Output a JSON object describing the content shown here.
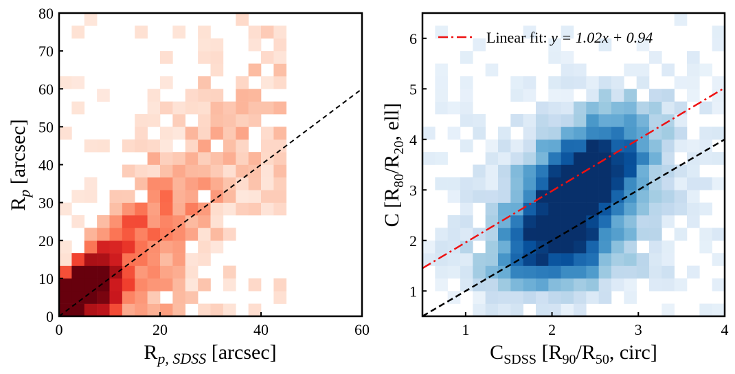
{
  "chart_data": [
    {
      "type": "heatmap",
      "panel": "left",
      "colormap": "Reds",
      "xlabel": "R_{p, SDSS} [arcsec]",
      "ylabel": "R_p [arcsec]",
      "xlim": [
        0,
        60
      ],
      "ylim": [
        0,
        80
      ],
      "x_ticks": [
        "0",
        "20",
        "40",
        "60"
      ],
      "y_ticks": [
        "0",
        "10",
        "20",
        "30",
        "40",
        "50",
        "60",
        "70",
        "80"
      ],
      "reference_line": {
        "style": "dashed",
        "color": "#000000",
        "from": [
          0,
          0
        ],
        "to": [
          60,
          60
        ]
      },
      "bin_counts_note": "intensity 0-1 (darker = more counts)",
      "bins_x": 24,
      "bins_y": 24,
      "grid": "off"
    },
    {
      "type": "heatmap",
      "panel": "right",
      "colormap": "Blues",
      "xlabel": "C_{SDSS} [R_{90}/R_{50}, circ]",
      "ylabel": "C [R_{80}/R_{20}, ell]",
      "xlim": [
        0.5,
        4.0
      ],
      "ylim": [
        0.5,
        6.5
      ],
      "x_ticks": [
        "1",
        "2",
        "3",
        "4"
      ],
      "y_ticks": [
        "1",
        "2",
        "3",
        "4",
        "5",
        "6"
      ],
      "reference_line": {
        "style": "dashed",
        "color": "#000000",
        "from": [
          0.5,
          0.5
        ],
        "to": [
          4.0,
          4.0
        ]
      },
      "fit_line": {
        "style": "dashdot",
        "color": "#ee1111",
        "slope": 1.02,
        "intercept": 0.94
      },
      "legend": {
        "position": "top-left",
        "entries": [
          {
            "label": "Linear fit: y = 1.02x + 0.94",
            "color": "#ee1111",
            "style": "dashdot"
          }
        ]
      },
      "bins_x": 24,
      "bins_y": 24,
      "grid": "off"
    }
  ],
  "labels": {
    "left_x": "R",
    "left_x_sub": "p, SDSS",
    "left_x_tail": " [arcsec]",
    "left_y": "R",
    "left_y_sub": "p",
    "left_y_tail": " [arcsec]",
    "right_x_main": "C",
    "right_x_sub": "SDSS",
    "right_x_mid": " [R",
    "right_x_sub2": "90",
    "right_x_mid2": "/R",
    "right_x_sub3": "50",
    "right_x_tail": ", circ]",
    "right_y_main": "C [R",
    "right_y_sub": "80",
    "right_y_mid": "/R",
    "right_y_sub2": "20",
    "right_y_tail": ", ell]",
    "legend_prefix": "Linear fit: ",
    "legend_eq": "y = 1.02x + 0.94"
  }
}
